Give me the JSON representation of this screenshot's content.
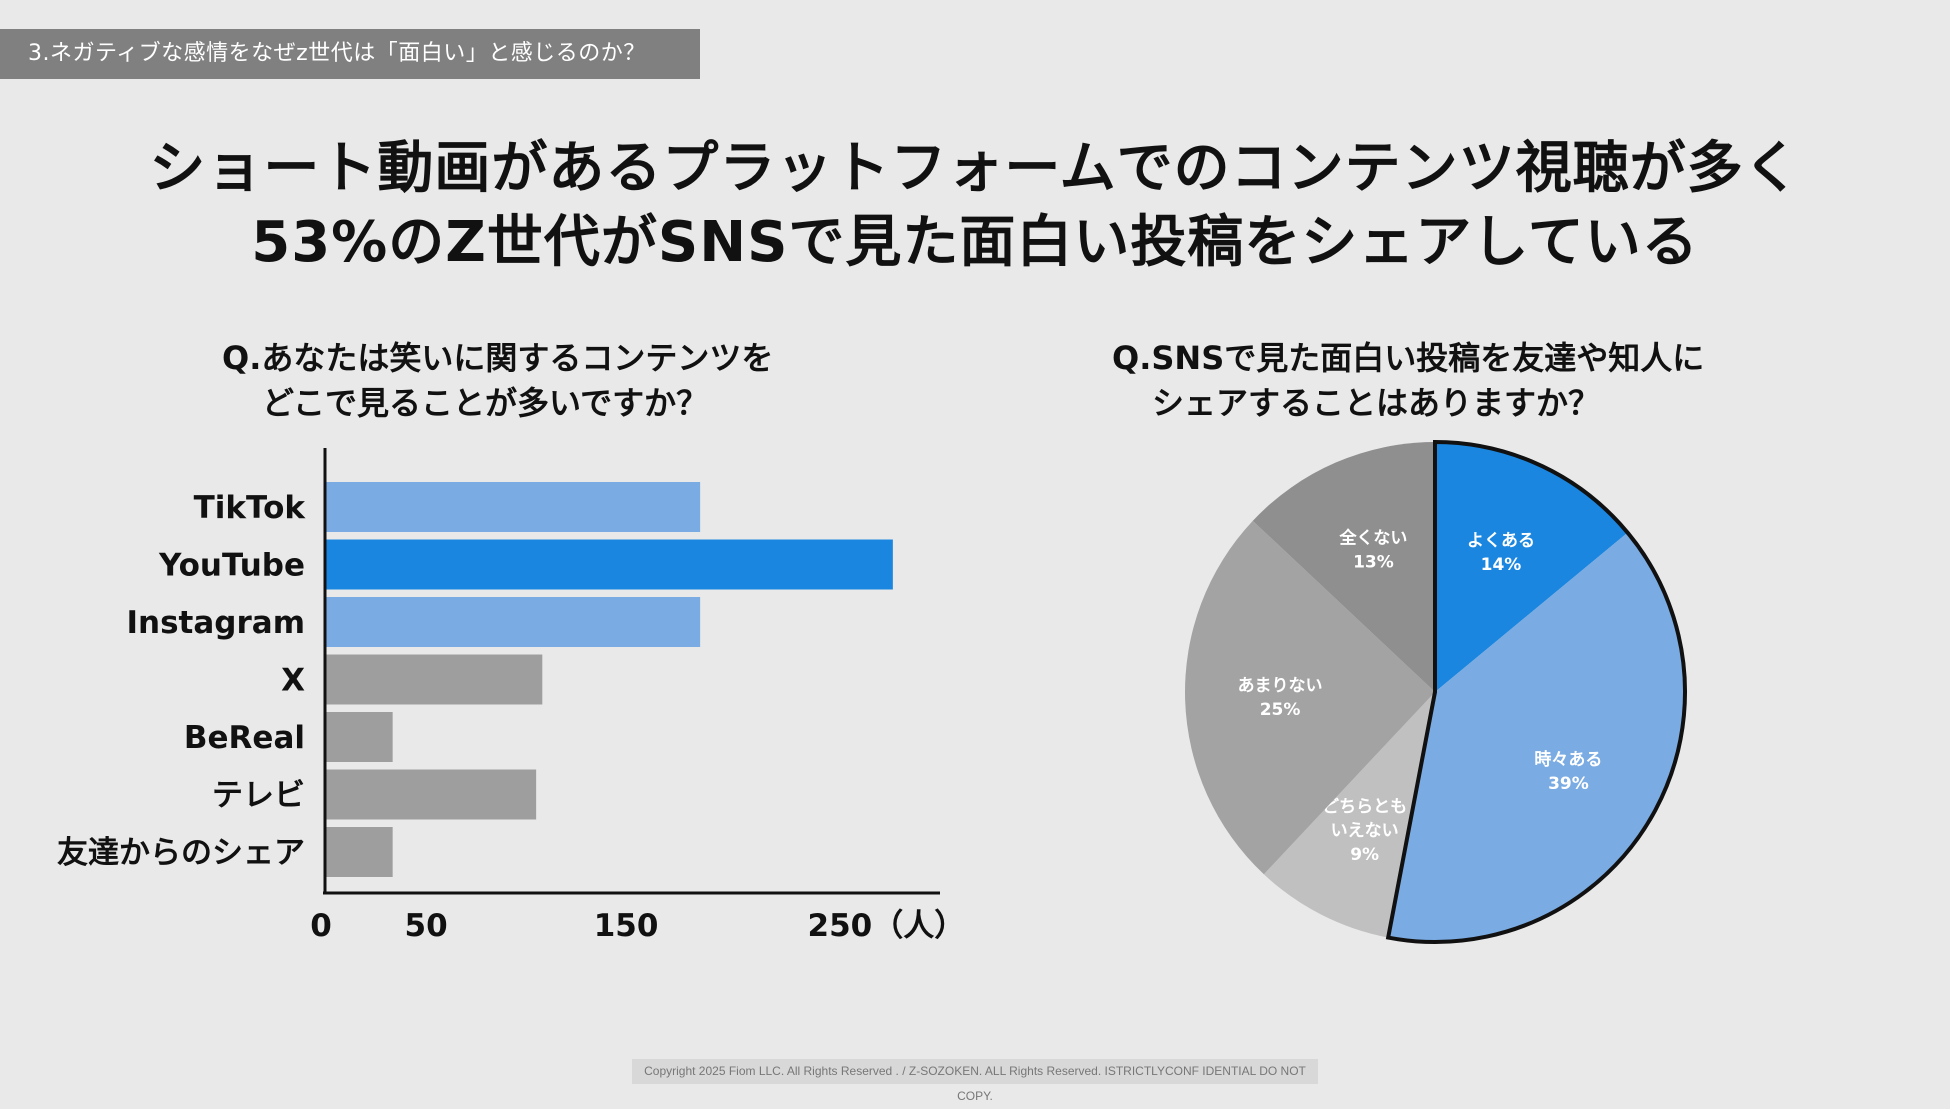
{
  "section_label": "3.ネガティブな感情をなぜz世代は「面白い」と感じるのか？",
  "headline": {
    "line1": "ショート動画があるプラットフォームでのコンテンツ視聴が多く",
    "line2": "53%のZ世代がSNSで見た面白い投稿をシェアしている"
  },
  "left_question": {
    "line1": "Q.あなたは笑いに関するコンテンツを",
    "line2": "どこで見ることが多いですか？"
  },
  "right_question": {
    "line1": "Q.SNSで見た面白い投稿を友達や知人に",
    "line2": "シェアすることはありますか？"
  },
  "footer": "Copyright 2025 Fiom LLC. All Rights Reserved . / Z-SOZOKEN. ALL Rights Reserved. ISTRICTLYCONF IDENTIAL DO NOT COPY.",
  "colors": {
    "light_blue": "#7aabe2",
    "blue": "#1a86e0",
    "gray": "#9e9e9e",
    "pie_gray_dark": "#8f8f8f",
    "pie_gray_mid": "#a3a3a3",
    "pie_gray_light": "#c0c0c0"
  },
  "chart_data": [
    {
      "type": "bar",
      "orientation": "horizontal",
      "categories": [
        "TikTok",
        "YouTube",
        "Instagram",
        "X",
        "BeReal",
        "テレビ",
        "友達からのシェア"
      ],
      "values": [
        183,
        277,
        183,
        106,
        33,
        103,
        33
      ],
      "bar_colors": [
        "light_blue",
        "blue",
        "light_blue",
        "gray",
        "gray",
        "gray",
        "gray"
      ],
      "x_ticks": [
        "0",
        "50",
        "150",
        "250（人）"
      ],
      "x_tick_values": [
        0,
        50,
        150,
        250
      ],
      "xlim": [
        0,
        300
      ]
    },
    {
      "type": "pie",
      "slices": [
        {
          "label_lines": [
            "よくある"
          ],
          "pct_label": "14%",
          "value": 14,
          "color": "blue",
          "highlight": true
        },
        {
          "label_lines": [
            "時々ある"
          ],
          "pct_label": "39%",
          "value": 39,
          "color": "light_blue",
          "highlight": true
        },
        {
          "label_lines": [
            "どちらとも",
            "いえない"
          ],
          "pct_label": "9%",
          "value": 9,
          "color": "pie_gray_light",
          "highlight": false
        },
        {
          "label_lines": [
            "あまりない"
          ],
          "pct_label": "25%",
          "value": 25,
          "color": "pie_gray_mid",
          "highlight": false
        },
        {
          "label_lines": [
            "全くない"
          ],
          "pct_label": "13%",
          "value": 13,
          "color": "pie_gray_dark",
          "highlight": false
        }
      ]
    }
  ]
}
